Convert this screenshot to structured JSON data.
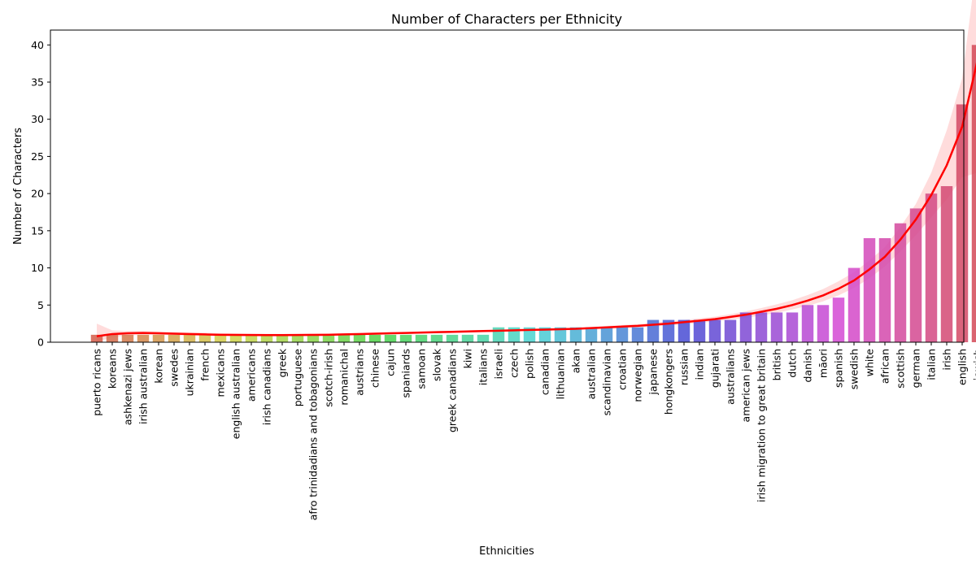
{
  "chart_data": {
    "type": "bar",
    "title": "Number of Characters per Ethnicity",
    "xlabel": "Ethnicities",
    "ylabel": "Number of Characters",
    "ylim": [
      0,
      42
    ],
    "yticks": [
      0,
      5,
      10,
      15,
      20,
      25,
      30,
      35,
      40
    ],
    "grid": false,
    "categories": [
      "puerto ricans",
      "koreans",
      "ashkenazi jews",
      "irish australian",
      "korean",
      "swedes",
      "ukrainian",
      "french",
      "mexicans",
      "english australian",
      "americans",
      "irish canadians",
      "greek",
      "portuguese",
      "afro trinidadians and tobagonians",
      "scotch-irish",
      "romanichal",
      "austrians",
      "chinese",
      "cajun",
      "spaniards",
      "samoan",
      "slovak",
      "greek canadians",
      "kiwi",
      "italians",
      "israeli",
      "czech",
      "polish",
      "canadian",
      "lithuanian",
      "akan",
      "australian",
      "scandinavian",
      "croatian",
      "norwegian",
      "japanese",
      "hongkongers",
      "russian",
      "indian",
      "gujarati",
      "australians",
      "american jews",
      "irish migration to great britain",
      "british",
      "dutch",
      "danish",
      "māori",
      "spanish",
      "swedish",
      "white",
      "african",
      "scottish",
      "german",
      "italian",
      "irish",
      "english",
      "jewish"
    ],
    "values": [
      1,
      1,
      1,
      1,
      1,
      1,
      1,
      1,
      1,
      1,
      1,
      1,
      1,
      1,
      1,
      1,
      1,
      1,
      1,
      1,
      1,
      1,
      1,
      1,
      1,
      1,
      2,
      2,
      2,
      2,
      2,
      2,
      2,
      2,
      2,
      2,
      3,
      3,
      3,
      3,
      3,
      3,
      4,
      4,
      4,
      4,
      5,
      5,
      6,
      10,
      14,
      14,
      16,
      18,
      20,
      21,
      32,
      40
    ],
    "trend": {
      "color": "#ff0000",
      "type": "polynomial fit with confidence band",
      "values": [
        0.8,
        1.1,
        1.2,
        1.25,
        1.2,
        1.15,
        1.1,
        1.05,
        1.0,
        0.98,
        0.97,
        0.96,
        0.96,
        0.97,
        0.98,
        1.0,
        1.05,
        1.1,
        1.15,
        1.2,
        1.25,
        1.3,
        1.35,
        1.4,
        1.45,
        1.5,
        1.55,
        1.6,
        1.65,
        1.7,
        1.75,
        1.8,
        1.9,
        2.0,
        2.1,
        2.2,
        2.35,
        2.5,
        2.7,
        2.9,
        3.1,
        3.4,
        3.7,
        4.1,
        4.5,
        5.0,
        5.6,
        6.3,
        7.2,
        8.3,
        9.8,
        11.5,
        13.8,
        16.5,
        19.8,
        23.8,
        29.0,
        38.0
      ],
      "band_lower": [
        0,
        0.7,
        0.9,
        1.0,
        1.0,
        0.95,
        0.9,
        0.85,
        0.82,
        0.8,
        0.8,
        0.8,
        0.8,
        0.8,
        0.82,
        0.85,
        0.9,
        0.95,
        1.0,
        1.05,
        1.1,
        1.15,
        1.2,
        1.25,
        1.3,
        1.35,
        1.4,
        1.45,
        1.5,
        1.55,
        1.6,
        1.65,
        1.72,
        1.8,
        1.9,
        2.0,
        2.1,
        2.25,
        2.4,
        2.6,
        2.8,
        3.05,
        3.3,
        3.6,
        3.95,
        4.4,
        4.9,
        5.5,
        6.3,
        7.3,
        8.6,
        10.2,
        12.2,
        14.4,
        16.8,
        19.2,
        22.2,
        22.8
      ],
      "band_upper": [
        2.5,
        1.6,
        1.5,
        1.5,
        1.45,
        1.4,
        1.35,
        1.3,
        1.22,
        1.18,
        1.15,
        1.13,
        1.12,
        1.14,
        1.16,
        1.18,
        1.22,
        1.26,
        1.3,
        1.35,
        1.4,
        1.45,
        1.5,
        1.55,
        1.6,
        1.65,
        1.7,
        1.75,
        1.8,
        1.85,
        1.9,
        1.95,
        2.08,
        2.2,
        2.32,
        2.45,
        2.6,
        2.78,
        3.0,
        3.22,
        3.45,
        3.78,
        4.15,
        4.6,
        5.1,
        5.65,
        6.35,
        7.15,
        8.2,
        9.4,
        11.0,
        12.8,
        15.5,
        18.6,
        22.8,
        28.5,
        35.5,
        52.0
      ]
    }
  }
}
